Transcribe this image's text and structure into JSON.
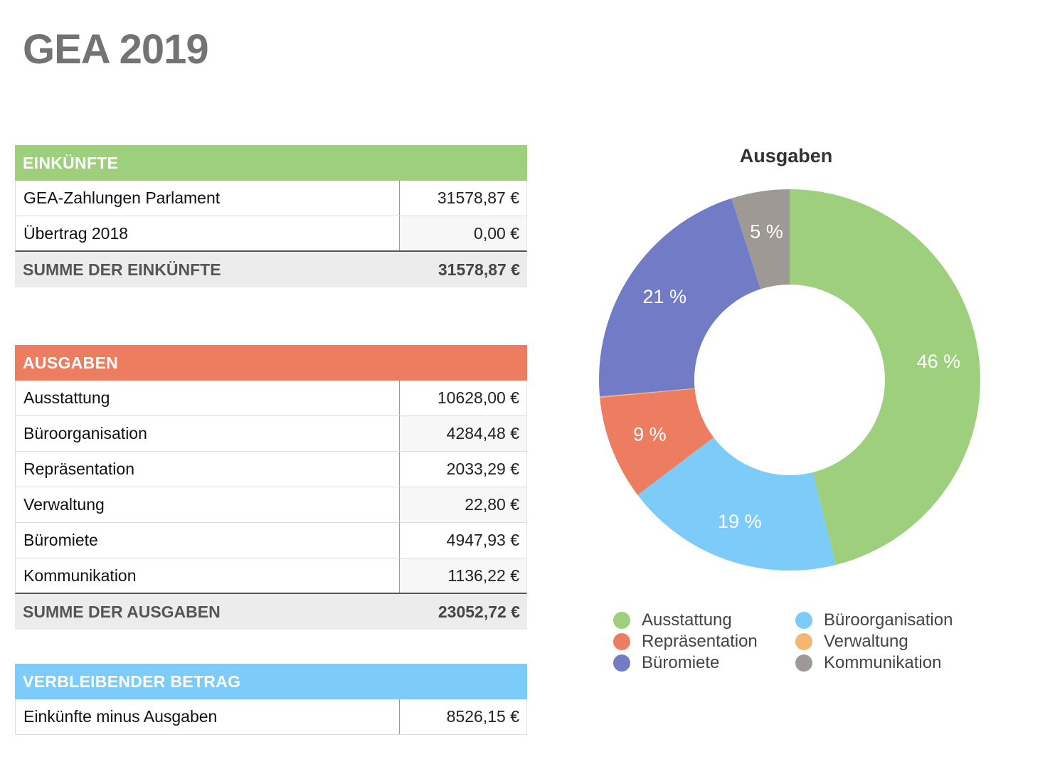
{
  "page_title": "GEA 2019",
  "einkuenfte": {
    "header": "EINKÜNFTE",
    "color": "#9dcf7d",
    "rows": [
      {
        "label": "GEA-Zahlungen Parlament",
        "value": "31578,87 €"
      },
      {
        "label": "Übertrag 2018",
        "value": "0,00 €"
      }
    ],
    "sum_label": "SUMME DER EINKÜNFTE",
    "sum_value": "31578,87 €"
  },
  "ausgaben": {
    "header": "AUSGABEN",
    "color": "#ed7d61",
    "rows": [
      {
        "label": "Ausstattung",
        "value": "10628,00 €"
      },
      {
        "label": "Büroorganisation",
        "value": "4284,48 €"
      },
      {
        "label": "Repräsentation",
        "value": "2033,29 €"
      },
      {
        "label": "Verwaltung",
        "value": "22,80 €"
      },
      {
        "label": "Büromiete",
        "value": "4947,93 €"
      },
      {
        "label": "Kommunikation",
        "value": "1136,22 €"
      }
    ],
    "sum_label": "SUMME DER AUSGABEN",
    "sum_value": "23052,72 €"
  },
  "verbleibend": {
    "header": "VERBLEIBENDER BETRAG",
    "color": "#7ccbf8",
    "rows": [
      {
        "label": "Einkünfte minus Ausgaben",
        "value": "8526,15 €"
      }
    ]
  },
  "chart_data": {
    "type": "pie",
    "title": "Ausgaben",
    "donut": true,
    "categories": [
      "Ausstattung",
      "Büroorganisation",
      "Repräsentation",
      "Verwaltung",
      "Büromiete",
      "Kommunikation"
    ],
    "values": [
      10628.0,
      4284.48,
      2033.29,
      22.8,
      4947.93,
      1136.22
    ],
    "labels": [
      "46 %",
      "19 %",
      "9 %",
      "",
      "21 %",
      "5 %"
    ],
    "colors": [
      "#9dcf7d",
      "#7ccbf8",
      "#ed7d61",
      "#f5b671",
      "#727bc6",
      "#9e9994"
    ],
    "legend_order": [
      "Ausstattung",
      "Büroorganisation",
      "Repräsentation",
      "Verwaltung",
      "Büromiete",
      "Kommunikation"
    ],
    "legend": "bottom"
  }
}
